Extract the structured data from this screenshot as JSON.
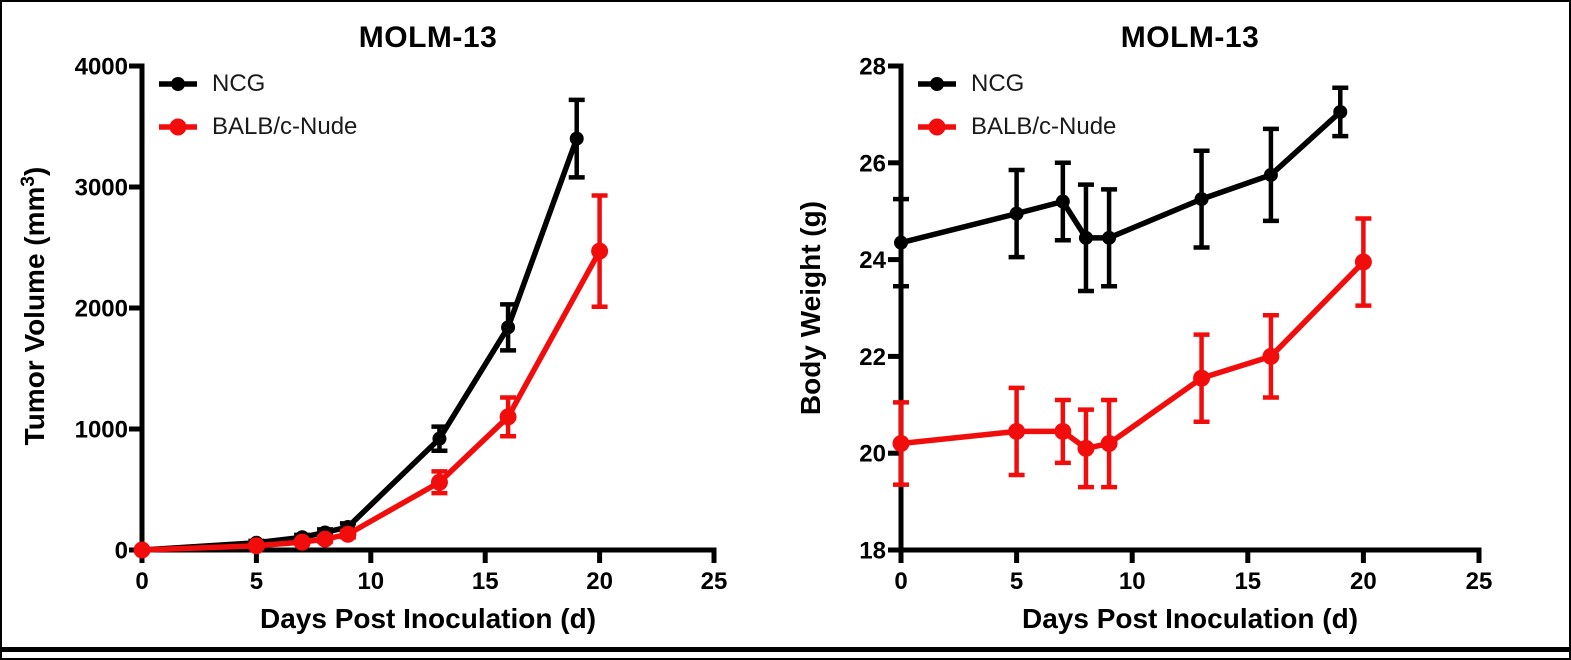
{
  "figure": {
    "background": "#FFFFFF",
    "border_color": "#000000",
    "bottom_rule_color": "#000000"
  },
  "colors": {
    "ncg": "#000000",
    "balb_c_nude": "#F20D0D",
    "axis": "#000000",
    "text": "#000000"
  },
  "chart_data": [
    {
      "type": "line",
      "title": "MOLM-13",
      "xlabel": "Days Post Inoculation (d)",
      "ylabel": "Tumor Volume (mm³)",
      "ylabel_parts": {
        "pre": "Tumor Volume (mm",
        "sup": "3",
        "post": ")"
      },
      "xlim": [
        0,
        25
      ],
      "ylim": [
        0,
        4000
      ],
      "xticks": [
        0,
        5,
        10,
        15,
        20,
        25
      ],
      "yticks": [
        0,
        1000,
        2000,
        3000,
        4000
      ],
      "grid": false,
      "legend_position": "top-left-inside",
      "series": [
        {
          "name": "NCG",
          "color": "#000000",
          "marker": "circle",
          "x": [
            0,
            5,
            7,
            8,
            9,
            13,
            16,
            19
          ],
          "y": [
            0,
            60,
            105,
            145,
            190,
            920,
            1840,
            3400
          ],
          "err": [
            0,
            15,
            20,
            25,
            30,
            100,
            190,
            320
          ]
        },
        {
          "name": "BALB/c-Nude",
          "color": "#F20D0D",
          "marker": "circle",
          "x": [
            0,
            5,
            7,
            8,
            9,
            13,
            16,
            20
          ],
          "y": [
            0,
            35,
            65,
            90,
            130,
            560,
            1100,
            2470
          ],
          "err": [
            0,
            10,
            15,
            20,
            25,
            90,
            160,
            460
          ]
        }
      ]
    },
    {
      "type": "line",
      "title": "MOLM-13",
      "xlabel": "Days Post Inoculation (d)",
      "ylabel": "Body Weight (g)",
      "ylabel_parts": {
        "pre": "Body Weight (g)",
        "sup": "",
        "post": ""
      },
      "xlim": [
        0,
        25
      ],
      "ylim": [
        18,
        28
      ],
      "xticks": [
        0,
        5,
        10,
        15,
        20,
        25
      ],
      "yticks": [
        18,
        20,
        22,
        24,
        26,
        28
      ],
      "grid": false,
      "legend_position": "top-left-inside",
      "series": [
        {
          "name": "NCG",
          "color": "#000000",
          "marker": "circle",
          "x": [
            0,
            5,
            7,
            8,
            9,
            13,
            16,
            19
          ],
          "y": [
            24.35,
            24.95,
            25.2,
            24.45,
            24.45,
            25.25,
            25.75,
            27.05
          ],
          "err": [
            0.9,
            0.9,
            0.8,
            1.1,
            1.0,
            1.0,
            0.95,
            0.5
          ]
        },
        {
          "name": "BALB/c-Nude",
          "color": "#F20D0D",
          "marker": "circle",
          "x": [
            0,
            5,
            7,
            8,
            9,
            13,
            16,
            20
          ],
          "y": [
            20.2,
            20.45,
            20.45,
            20.1,
            20.2,
            21.55,
            22.0,
            23.95
          ],
          "err": [
            0.85,
            0.9,
            0.65,
            0.8,
            0.9,
            0.9,
            0.85,
            0.9
          ]
        }
      ]
    }
  ]
}
